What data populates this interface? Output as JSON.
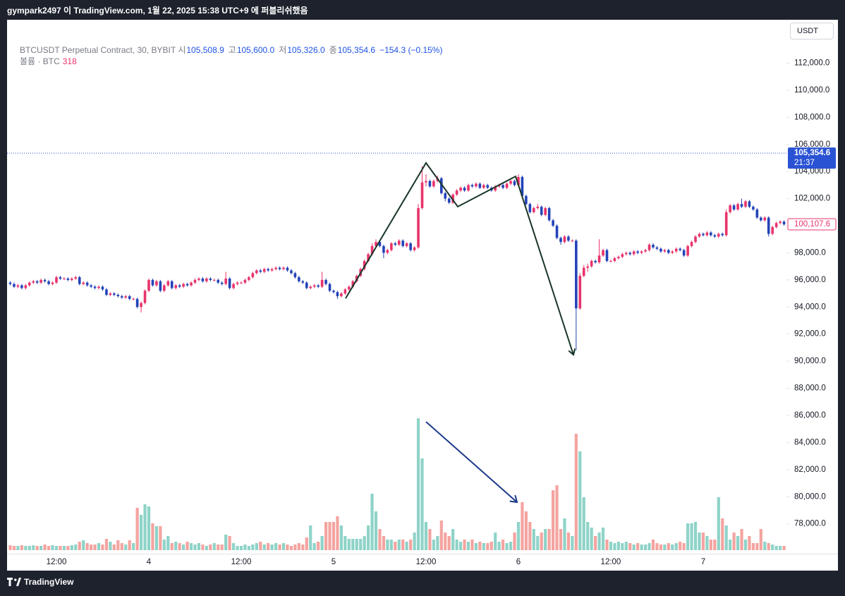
{
  "top_bar": {
    "text": "gympark2497 이 TradingView.com, 1월 22, 2025 15:38 UTC+9 에 퍼블리쉬했음"
  },
  "chart_data": {
    "type": "candlestick",
    "legend": {
      "symbol": "BTCUSDT Perpetual Contract, 30, BYBIT",
      "open_label": "시",
      "open": "105,508.9",
      "high_label": "고",
      "high": "105,600.0",
      "low_label": "저",
      "low": "105,326.0",
      "close_label": "종",
      "close": "105,354.6",
      "change": "−154.3 (−0.15%)",
      "volume_label": "볼륨 · BTC"
    },
    "currency": "USDT",
    "categories": [
      null,
      null,
      null,
      null,
      null,
      null,
      null,
      null,
      null,
      null,
      null,
      null,
      "12:00",
      null,
      null,
      null,
      null,
      null,
      null,
      null,
      null,
      null,
      null,
      null,
      null,
      null,
      null,
      null,
      null,
      null,
      null,
      null,
      null,
      null,
      null,
      null,
      "4",
      null,
      null,
      null,
      null,
      null,
      null,
      null,
      null,
      null,
      null,
      null,
      null,
      null,
      null,
      null,
      null,
      null,
      null,
      null,
      null,
      null,
      null,
      null,
      "12:00",
      null,
      null,
      null,
      null,
      null,
      null,
      null,
      null,
      null,
      null,
      null,
      null,
      null,
      null,
      null,
      null,
      null,
      null,
      null,
      null,
      null,
      null,
      null,
      "5",
      null,
      null,
      null,
      null,
      null,
      null,
      null,
      null,
      null,
      null,
      null,
      null,
      null,
      null,
      null,
      null,
      null,
      null,
      null,
      null,
      null,
      null,
      null,
      "12:00",
      null,
      null,
      null,
      null,
      null,
      null,
      null,
      null,
      null,
      null,
      null,
      null,
      null,
      null,
      null,
      null,
      null,
      null,
      null,
      null,
      null,
      null,
      null,
      "6",
      null,
      null,
      null,
      null,
      null,
      null,
      null,
      null,
      null,
      null,
      null,
      null,
      null,
      null,
      null,
      null,
      null,
      null,
      null,
      null,
      null,
      null,
      null,
      "12:00",
      null,
      null,
      null,
      null,
      null,
      null,
      null,
      null,
      null,
      null,
      null,
      null,
      null,
      null,
      null,
      null,
      null,
      null,
      null,
      null,
      null,
      null,
      null,
      "7",
      null,
      null,
      null,
      null,
      null,
      null,
      null,
      null,
      null,
      null,
      null,
      null,
      null,
      null,
      null,
      null,
      null,
      null,
      null,
      null,
      null
    ],
    "open": [
      95800,
      95700,
      95500,
      95600,
      95400,
      95600,
      95800,
      95900,
      95800,
      96000,
      95900,
      95700,
      95800,
      96200,
      96100,
      96100,
      96000,
      96100,
      96200,
      95700,
      95800,
      95600,
      95500,
      95400,
      95500,
      95300,
      94900,
      95000,
      94900,
      94800,
      94700,
      94800,
      94600,
      94600,
      94000,
      94300,
      95200,
      96000,
      95600,
      95900,
      95200,
      95600,
      95900,
      95400,
      95600,
      95500,
      95700,
      95600,
      95800,
      96000,
      96100,
      95900,
      96100,
      96000,
      96000,
      95800,
      95700,
      96100,
      95400,
      95700,
      95800,
      95800,
      96000,
      96200,
      96500,
      96700,
      96600,
      96800,
      96700,
      96800,
      96900,
      96800,
      96900,
      96700,
      96500,
      96200,
      95900,
      95800,
      95400,
      95500,
      95600,
      95500,
      96000,
      95700,
      95200,
      95100,
      94800,
      95000,
      95300,
      95500,
      95900,
      96300,
      96800,
      97400,
      97900,
      98500,
      98800,
      98500,
      98000,
      98200,
      98700,
      98600,
      98900,
      98500,
      98700,
      98200,
      98400,
      101300,
      103200,
      103300,
      102900,
      103300,
      103500,
      102400,
      102000,
      101700,
      102300,
      102600,
      102800,
      102600,
      103000,
      102900,
      103100,
      102800,
      103000,
      102800,
      102600,
      102900,
      103000,
      102800,
      103100,
      103300,
      103000,
      103600,
      102200,
      101600,
      101000,
      101300,
      101400,
      100800,
      101300,
      100400,
      100000,
      99100,
      98800,
      99200,
      98900,
      98900,
      93900,
      96300,
      96900,
      97000,
      97400,
      97300,
      97800,
      98200,
      97400,
      97400,
      97600,
      97700,
      97900,
      98000,
      97900,
      98100,
      98000,
      98100,
      98200,
      98600,
      98400,
      98300,
      98100,
      98200,
      98000,
      98100,
      98300,
      98200,
      97800,
      98500,
      98800,
      99200,
      99400,
      99300,
      99500,
      99300,
      99200,
      99400,
      99300,
      101000,
      101500,
      101200,
      101600,
      101400,
      101800,
      101400,
      101200,
      100600,
      100400,
      100600,
      99400,
      99900,
      100200,
      100300
    ],
    "high": [
      95900,
      95800,
      95700,
      95700,
      95700,
      95900,
      96000,
      96000,
      96100,
      96100,
      96000,
      95900,
      96300,
      96300,
      96200,
      96200,
      96200,
      96300,
      96300,
      95900,
      95900,
      95700,
      95600,
      95600,
      95600,
      95400,
      95100,
      95100,
      95000,
      94900,
      94900,
      94900,
      94700,
      94700,
      94400,
      95300,
      96100,
      96100,
      96000,
      96000,
      95700,
      96000,
      96000,
      95700,
      95700,
      95800,
      95800,
      95900,
      96100,
      96200,
      96200,
      96200,
      96200,
      96100,
      96100,
      95900,
      96600,
      96200,
      95800,
      95900,
      95900,
      96100,
      96300,
      96600,
      96800,
      96800,
      96900,
      96900,
      96900,
      97000,
      97000,
      97000,
      97000,
      96800,
      96600,
      96300,
      96000,
      95900,
      95600,
      95700,
      95700,
      96600,
      96100,
      95800,
      95300,
      95200,
      95100,
      95400,
      95600,
      96000,
      96400,
      96900,
      97500,
      98000,
      98700,
      99000,
      98900,
      98600,
      98300,
      98800,
      98800,
      99000,
      99000,
      98800,
      98800,
      98500,
      101600,
      104400,
      103800,
      103400,
      103400,
      103700,
      103600,
      102500,
      102100,
      102400,
      102700,
      102900,
      102900,
      103100,
      103100,
      103200,
      103200,
      103100,
      103100,
      102900,
      103000,
      103100,
      103100,
      103200,
      103400,
      103400,
      103800,
      103700,
      102300,
      101700,
      101400,
      101600,
      101500,
      101400,
      101400,
      100500,
      100100,
      99200,
      99300,
      99300,
      99000,
      99000,
      96500,
      97100,
      97200,
      97500,
      97500,
      99000,
      98300,
      98300,
      97500,
      97700,
      97800,
      98000,
      98100,
      98100,
      98200,
      98200,
      98200,
      98300,
      98700,
      98700,
      98500,
      98400,
      98300,
      98300,
      98200,
      98400,
      98400,
      98300,
      98600,
      98900,
      99300,
      99500,
      99500,
      99600,
      99600,
      99400,
      99500,
      99500,
      101200,
      101600,
      101600,
      101700,
      102000,
      101900,
      101900,
      101500,
      101300,
      100700,
      100700,
      100700,
      100000,
      100300,
      100400,
      100400
    ],
    "low": [
      95600,
      95400,
      95400,
      95300,
      95300,
      95500,
      95700,
      95700,
      95700,
      95800,
      95600,
      95600,
      95700,
      96000,
      96000,
      95900,
      95900,
      96000,
      95600,
      95600,
      95500,
      95400,
      95300,
      95300,
      95200,
      94800,
      94800,
      94800,
      94700,
      94600,
      94600,
      94500,
      94500,
      93900,
      93600,
      94200,
      95100,
      95500,
      95500,
      95100,
      95100,
      95500,
      95300,
      95300,
      95400,
      95400,
      95500,
      95500,
      95700,
      95900,
      95800,
      95800,
      95900,
      95900,
      95700,
      95600,
      95600,
      95300,
      95300,
      95600,
      95700,
      95700,
      95900,
      96100,
      96400,
      96500,
      96500,
      96600,
      96600,
      96700,
      96700,
      96700,
      96600,
      96400,
      96100,
      95800,
      95700,
      95300,
      95300,
      95400,
      95400,
      95400,
      95600,
      95100,
      95000,
      94600,
      94700,
      94900,
      95200,
      95400,
      95800,
      96200,
      96700,
      97300,
      97800,
      98400,
      98400,
      97600,
      97900,
      98100,
      98500,
      98500,
      98400,
      98400,
      98100,
      98100,
      98300,
      101200,
      102900,
      102800,
      102800,
      103200,
      102300,
      101800,
      101600,
      101600,
      102200,
      102500,
      102500,
      102500,
      102800,
      102800,
      102700,
      102700,
      102700,
      102500,
      102500,
      102800,
      102700,
      102700,
      103000,
      102900,
      102900,
      102100,
      101500,
      100900,
      100900,
      101200,
      100700,
      100700,
      100300,
      99900,
      99000,
      98600,
      98700,
      98800,
      98800,
      90800,
      93800,
      96200,
      96600,
      96900,
      97200,
      97200,
      97700,
      97300,
      97300,
      97300,
      97500,
      97600,
      97800,
      97800,
      97800,
      97900,
      97900,
      98000,
      98100,
      98300,
      98200,
      98000,
      98000,
      97900,
      97900,
      98000,
      98100,
      97700,
      97700,
      98400,
      98700,
      99100,
      99200,
      99200,
      99200,
      99100,
      99100,
      99200,
      99200,
      100900,
      101100,
      101100,
      101300,
      101300,
      101300,
      101100,
      100500,
      100300,
      100300,
      99200,
      99300,
      99800,
      100100,
      100000
    ],
    "close": [
      95700,
      95500,
      95600,
      95400,
      95600,
      95800,
      95900,
      95800,
      96000,
      95900,
      95700,
      95800,
      96200,
      96100,
      96100,
      96000,
      96100,
      96200,
      95700,
      95800,
      95600,
      95500,
      95400,
      95500,
      95300,
      94900,
      95000,
      94900,
      94800,
      94700,
      94800,
      94600,
      94600,
      94000,
      94300,
      95200,
      96000,
      95600,
      95900,
      95200,
      95600,
      95900,
      95400,
      95600,
      95500,
      95700,
      95600,
      95800,
      96000,
      96100,
      95900,
      96100,
      96000,
      96000,
      95800,
      95700,
      96100,
      95400,
      95700,
      95800,
      95800,
      96000,
      96200,
      96500,
      96700,
      96600,
      96800,
      96700,
      96800,
      96900,
      96800,
      96900,
      96700,
      96500,
      96200,
      95900,
      95800,
      95400,
      95500,
      95600,
      95500,
      96000,
      95700,
      95200,
      95100,
      94800,
      95000,
      95300,
      95500,
      95900,
      96300,
      96800,
      97400,
      97900,
      98500,
      98800,
      98500,
      98000,
      98200,
      98700,
      98600,
      98900,
      98500,
      98700,
      98200,
      98400,
      101300,
      103200,
      103300,
      102900,
      103300,
      103500,
      102400,
      102000,
      101700,
      102300,
      102600,
      102800,
      102600,
      103000,
      102900,
      103100,
      102800,
      103000,
      102800,
      102600,
      102900,
      103000,
      102800,
      103100,
      103300,
      103000,
      103600,
      102200,
      101600,
      101000,
      101300,
      101400,
      100800,
      101300,
      100400,
      100000,
      99100,
      98800,
      99200,
      98900,
      98900,
      93900,
      96300,
      96900,
      97000,
      97400,
      97300,
      97800,
      98200,
      97400,
      97400,
      97600,
      97700,
      97900,
      98000,
      97900,
      98100,
      98000,
      98100,
      98200,
      98600,
      98400,
      98300,
      98100,
      98200,
      98000,
      98100,
      98300,
      98200,
      97800,
      98500,
      98800,
      99200,
      99400,
      99300,
      99500,
      99300,
      99200,
      99400,
      99300,
      101000,
      101500,
      101200,
      101600,
      101400,
      101800,
      101400,
      101200,
      100600,
      100400,
      100600,
      99400,
      99900,
      100200,
      100300,
      100100
    ],
    "volume": [
      371,
      318,
      318,
      371,
      318,
      318,
      371,
      318,
      318,
      424,
      318,
      371,
      318,
      318,
      318,
      318,
      371,
      424,
      636,
      742,
      530,
      424,
      424,
      530,
      424,
      848,
      636,
      424,
      742,
      530,
      424,
      742,
      530,
      3180,
      2650,
      3445,
      3286,
      2014,
      1802,
      1802,
      795,
      1060,
      530,
      636,
      530,
      424,
      636,
      530,
      424,
      530,
      424,
      318,
      424,
      530,
      424,
      424,
      1166,
      1060,
      530,
      318,
      318,
      424,
      318,
      424,
      530,
      636,
      424,
      530,
      424,
      530,
      424,
      530,
      424,
      318,
      424,
      530,
      424,
      954,
      1855,
      530,
      636,
      1060,
      2120,
      2120,
      2120,
      2544,
      1855,
      1060,
      848,
      848,
      848,
      848,
      1060,
      1855,
      4240,
      2915,
      1590,
      1060,
      795,
      795,
      636,
      795,
      795,
      636,
      795,
      1325,
      9911,
      6890,
      2120,
      1590,
      795,
      1060,
      2226,
      1325,
      1060,
      1590,
      795,
      636,
      795,
      636,
      795,
      530,
      636,
      530,
      530,
      636,
      1325,
      636,
      795,
      530,
      636,
      1325,
      2120,
      3604,
      2915,
      2120,
      1590,
      1060,
      1325,
      1590,
      1590,
      4505,
      4876,
      1590,
      2385,
      1325,
      1060,
      8745,
      7420,
      3975,
      2120,
      1696,
      1060,
      1325,
      1696,
      795,
      636,
      530,
      636,
      530,
      636,
      530,
      424,
      530,
      424,
      424,
      530,
      795,
      530,
      424,
      424,
      530,
      424,
      530,
      636,
      530,
      2014,
      2014,
      2120,
      1325,
      1325,
      1060,
      795,
      795,
      3975,
      2385,
      1855,
      795,
      1325,
      1060,
      1590,
      795,
      1060,
      530,
      530,
      1590,
      636,
      530,
      424,
      318,
      318,
      318
    ],
    "up_color": "#e8336b",
    "down_color": "#2343b8",
    "volume_up_color": "#8fd3c8",
    "volume_down_color": "#f4a4a0",
    "ylim": [
      74600,
      115200
    ],
    "yticks": [
      {
        "value": 78000,
        "label": "78,000.0"
      },
      {
        "value": 80000,
        "label": "80,000.0"
      },
      {
        "value": 82000,
        "label": "82,000.0"
      },
      {
        "value": 84000,
        "label": "84,000.0"
      },
      {
        "value": 86000,
        "label": "86,000.0"
      },
      {
        "value": 88000,
        "label": "88,000.0"
      },
      {
        "value": 90000,
        "label": "90,000.0"
      },
      {
        "value": 92000,
        "label": "92,000.0"
      },
      {
        "value": 94000,
        "label": "94,000.0"
      },
      {
        "value": 96000,
        "label": "96,000.0"
      },
      {
        "value": 98000,
        "label": "98,000.0"
      },
      {
        "value": 100000,
        "label": "100,000.0"
      },
      {
        "value": 102000,
        "label": "102,000.0"
      },
      {
        "value": 104000,
        "label": "104,000.0"
      },
      {
        "value": 106000,
        "label": "106,000.0"
      },
      {
        "value": 108000,
        "label": "108,000.0"
      },
      {
        "value": 110000,
        "label": "110,000.0"
      },
      {
        "value": 112000,
        "label": "112,000.0"
      }
    ],
    "last_price": {
      "value": 105354.6,
      "label": "105,354.6"
    },
    "countdown": "21:37",
    "price_marker": {
      "value": 100107.6,
      "label": "100,107.6"
    },
    "grid": false
  },
  "footer": {
    "brand": "TradingView"
  }
}
